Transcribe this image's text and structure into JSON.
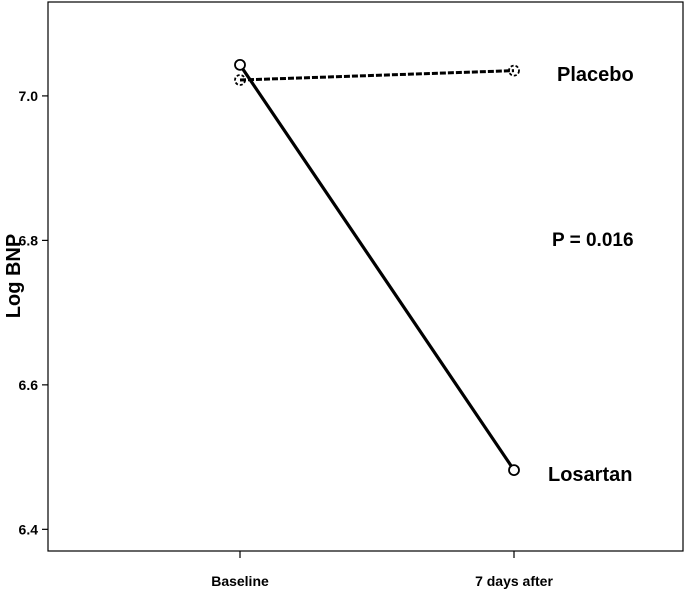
{
  "chart_data": {
    "type": "line",
    "categories": [
      "Baseline",
      "7 days after"
    ],
    "ylabel": "Log BNP",
    "xlabel": "",
    "ylim": [
      6.37,
      7.13
    ],
    "yticks": [
      "6.4",
      "6.6",
      "6.8",
      "7.0"
    ],
    "grid": false,
    "series": [
      {
        "name": "Placebo",
        "values": [
          7.022,
          7.035
        ],
        "style": "dashed",
        "color": "#000000"
      },
      {
        "name": "Losartan",
        "values": [
          7.043,
          6.482
        ],
        "style": "solid",
        "color": "#000000"
      }
    ],
    "annotations": [
      {
        "text": "P = 0.016"
      }
    ]
  }
}
